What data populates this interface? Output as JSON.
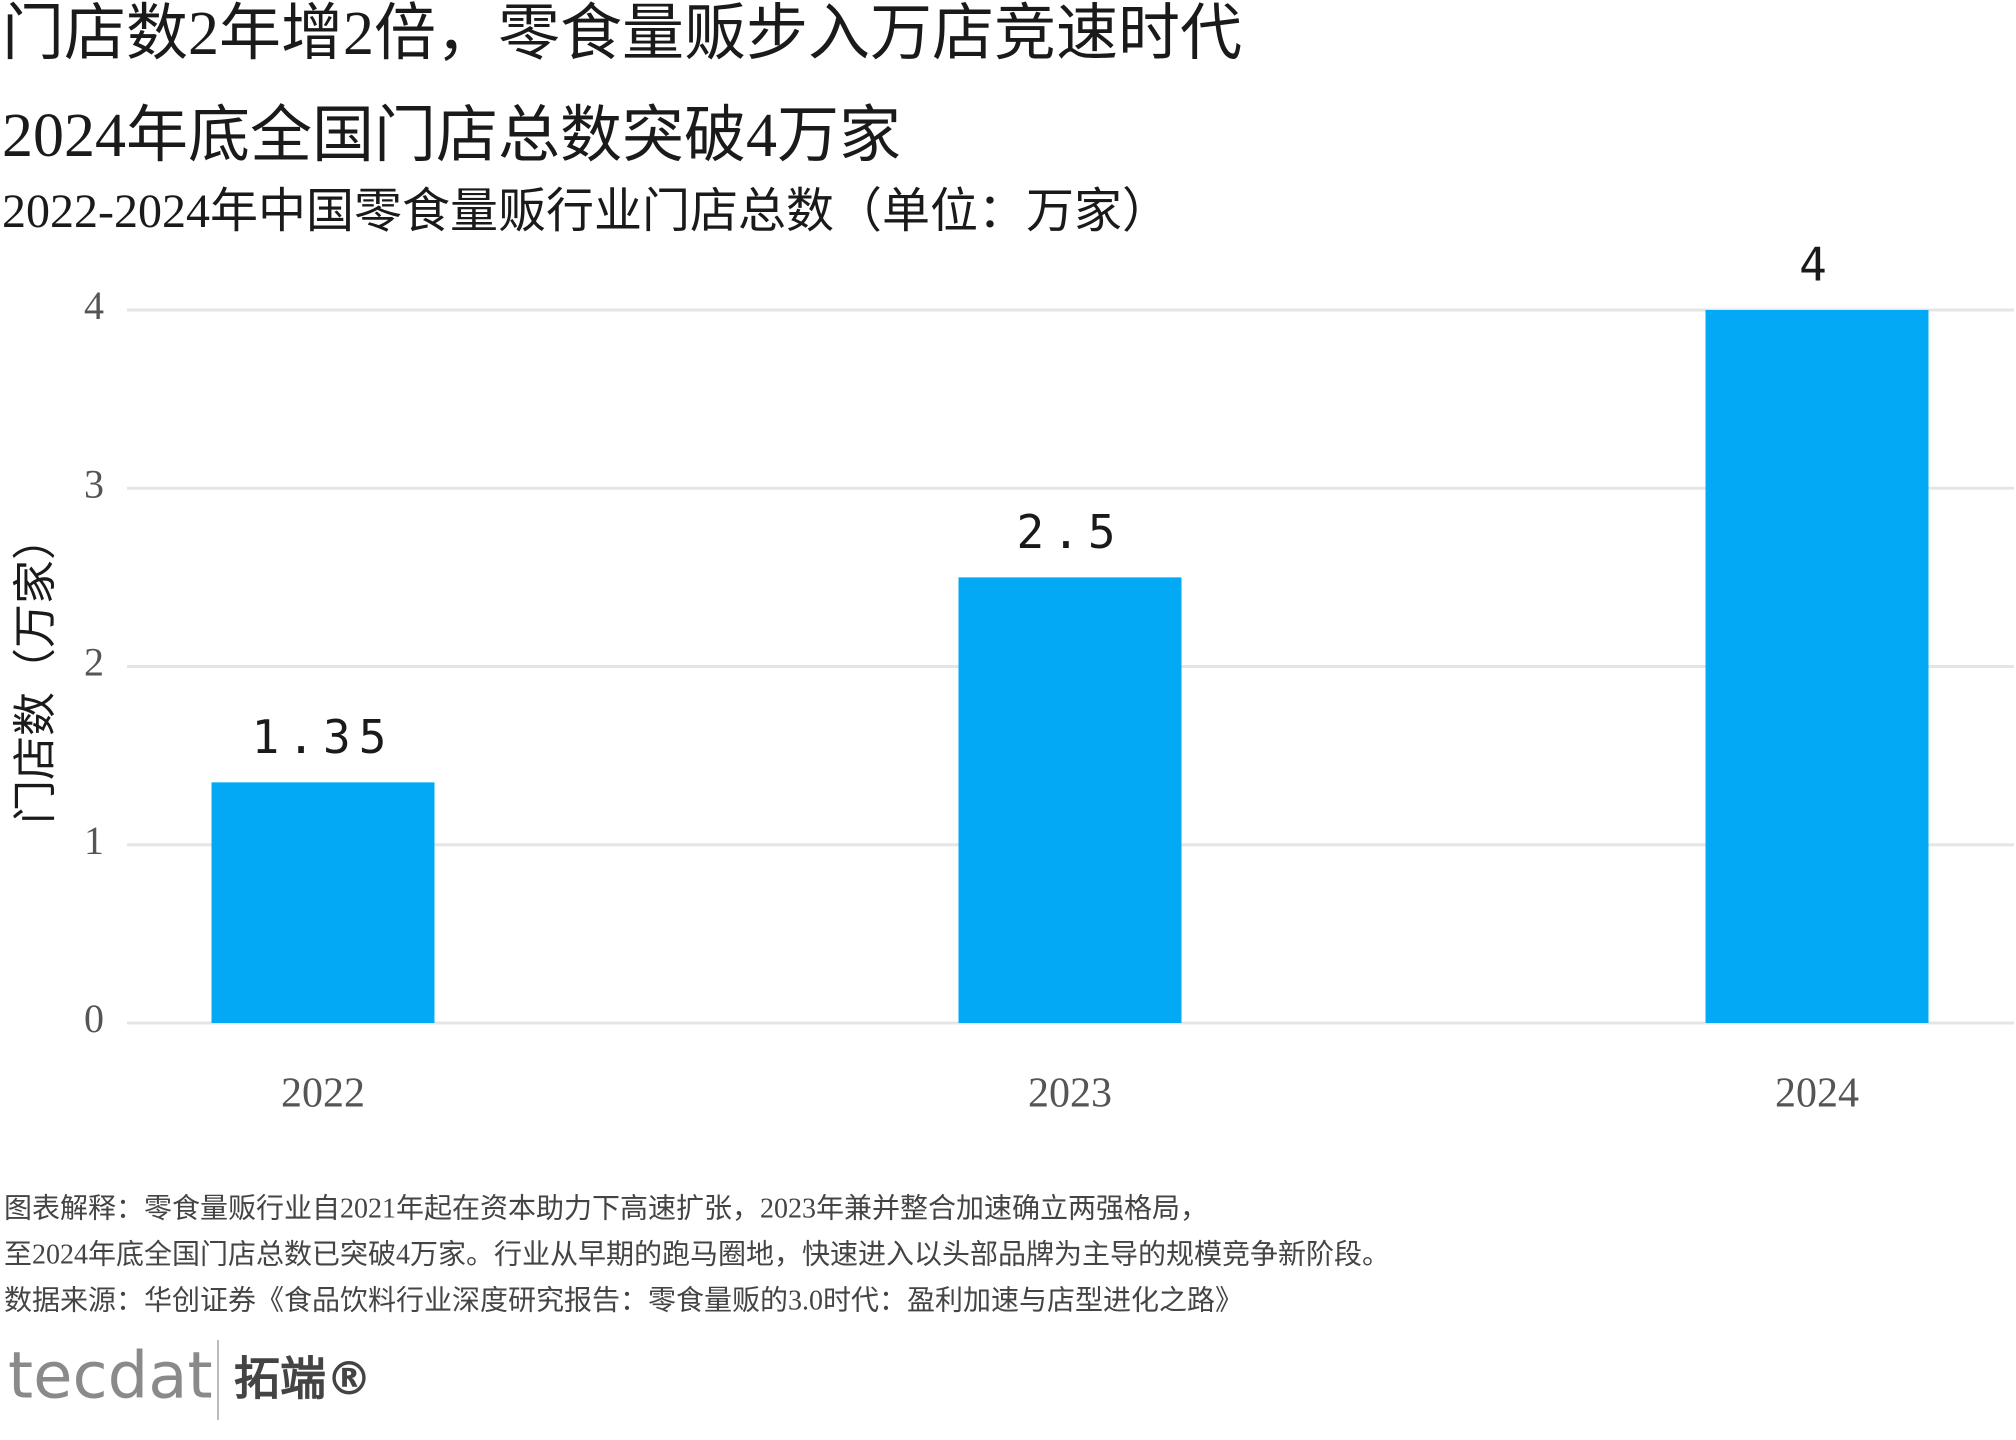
{
  "title": "门店数2年增2倍，零食量贩步入万店竞速时代",
  "subtitle": "2024年底全国门店总数突破4万家",
  "chart_data": {
    "type": "bar",
    "title": "2022-2024年中国零食量贩行业门店总数（单位：万家）",
    "ylabel": "门店数（万家）",
    "categories": [
      "2022",
      "2023",
      "2024"
    ],
    "values": [
      1.35,
      2.5,
      4
    ],
    "color": "#03a9f4",
    "ylim": [
      0,
      4
    ],
    "yticks": [
      0,
      1,
      2,
      3,
      4
    ],
    "grid": true
  },
  "notes": [
    "图表解释：零食量贩行业自2021年起在资本助力下高速扩张，2023年兼并整合加速确立两强格局，",
    "至2024年底全国门店总数已突破4万家。行业从早期的跑马圈地，快速进入以头部品牌为主导的规模竞争新阶段。",
    "数据来源：华创证券《食品饮料行业深度研究报告：零食量贩的3.0时代：盈利加速与店型进化之路》"
  ],
  "logo": {
    "brand": "tecdat",
    "name": "拓端®"
  }
}
